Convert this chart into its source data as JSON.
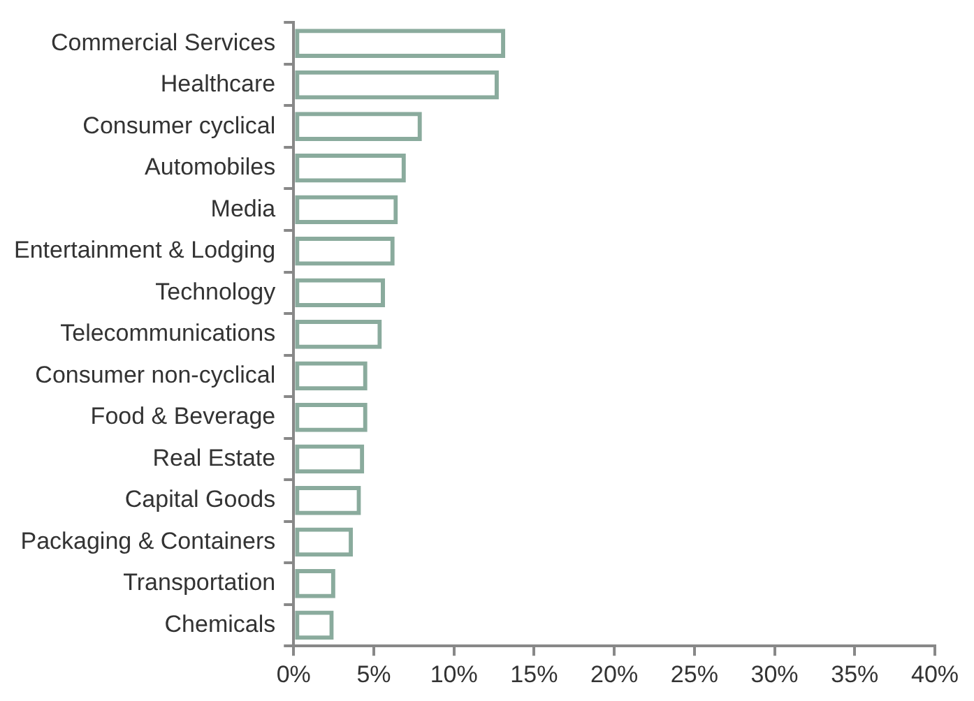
{
  "chart_data": {
    "type": "bar",
    "orientation": "horizontal",
    "categories": [
      "Commercial Services",
      "Healthcare",
      "Consumer cyclical",
      "Automobiles",
      "Media",
      "Entertainment & Lodging",
      "Technology",
      "Telecommunications",
      "Consumer non-cyclical",
      "Food & Beverage",
      "Real Estate",
      "Capital Goods",
      "Packaging & Containers",
      "Transportation",
      "Chemicals"
    ],
    "values": [
      13.2,
      12.8,
      8.0,
      7.0,
      6.5,
      6.3,
      5.7,
      5.5,
      4.6,
      4.6,
      4.4,
      4.2,
      3.7,
      2.6,
      2.5
    ],
    "color": "#8aab9d",
    "xlim": [
      0,
      40
    ],
    "xticks": [
      {
        "value": 0,
        "label": "0%"
      },
      {
        "value": 5,
        "label": "5%"
      },
      {
        "value": 10,
        "label": "10%"
      },
      {
        "value": 15,
        "label": "15%"
      },
      {
        "value": 20,
        "label": "20%"
      },
      {
        "value": 25,
        "label": "25%"
      },
      {
        "value": 30,
        "label": "30%"
      },
      {
        "value": 35,
        "label": "35%"
      },
      {
        "value": 40,
        "label": "40%"
      }
    ],
    "grid": false,
    "legend": false
  }
}
